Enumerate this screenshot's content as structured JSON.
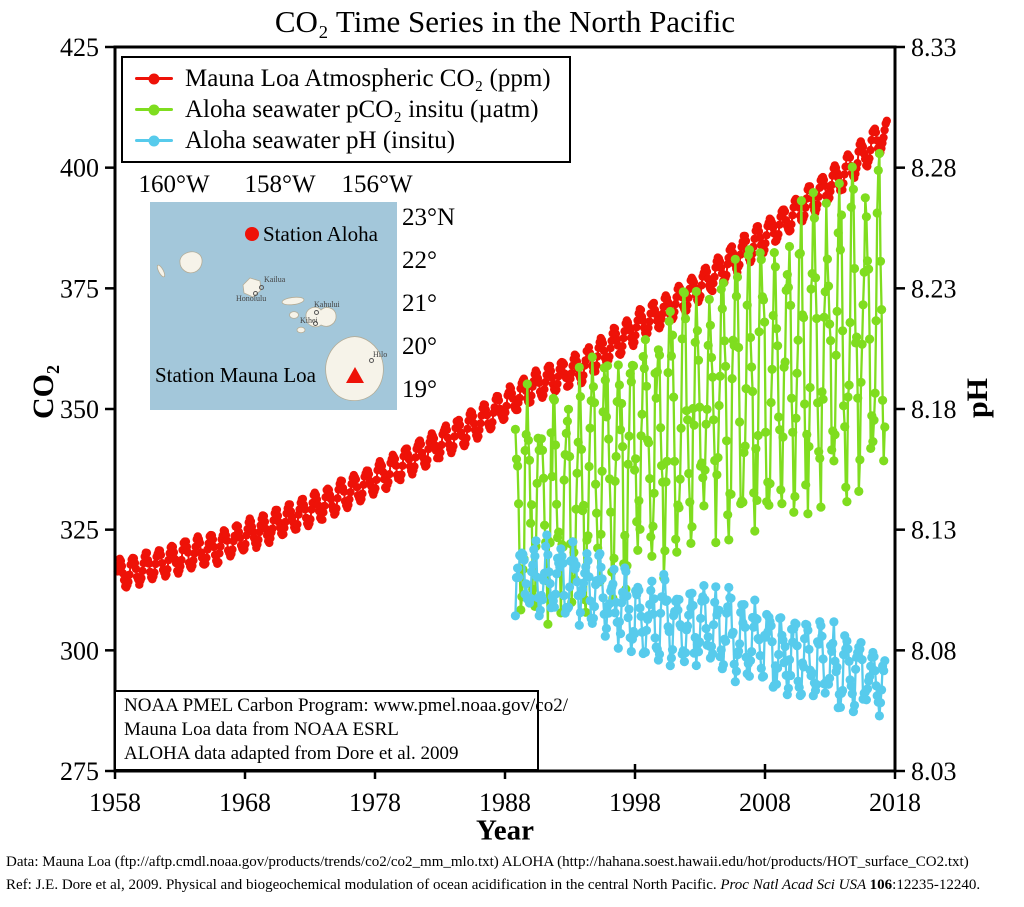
{
  "chart_data": {
    "type": "line",
    "title": "CO₂ Time Series in the North Pacific",
    "xlabel": "Year",
    "ylabel_left": "CO₂",
    "ylabel_right": "pH",
    "x_range": [
      1958,
      2018
    ],
    "y_left_range": [
      275,
      425
    ],
    "y_right_range": [
      8.03,
      8.33
    ],
    "x_ticks": [
      1958,
      1968,
      1978,
      1988,
      1998,
      2008,
      2018
    ],
    "y_left_ticks": [
      425,
      400,
      375,
      350,
      325,
      300,
      275
    ],
    "y_right_ticks": [
      8.33,
      8.28,
      8.23,
      8.18,
      8.13,
      8.08,
      8.03
    ],
    "grid": false,
    "legend_position": "top-left",
    "noise_seed": 7,
    "series": [
      {
        "name": "Mauna Loa Atmospheric CO₂ (ppm)",
        "color": "#ee1208",
        "axis": "left",
        "start": 1958.2,
        "end": 2017.4,
        "seasonal_amplitude": 3.0,
        "amplitude_growth": 0.0,
        "seasonal_phase": 0.38,
        "noise": 0.4,
        "anchors": [
          [
            1958,
            315.3
          ],
          [
            1962,
            318.5
          ],
          [
            1966,
            321.4
          ],
          [
            1970,
            325.7
          ],
          [
            1974,
            330.1
          ],
          [
            1978,
            335.4
          ],
          [
            1982,
            341.4
          ],
          [
            1986,
            347.2
          ],
          [
            1990,
            354.4
          ],
          [
            1994,
            358.8
          ],
          [
            1998,
            366.7
          ],
          [
            2002,
            373.2
          ],
          [
            2006,
            381.9
          ],
          [
            2010,
            389.9
          ],
          [
            2014,
            398.6
          ],
          [
            2017,
            406.5
          ]
        ]
      },
      {
        "name": "Aloha seawater pCO₂ insitu (µatm)",
        "color": "#7fdd1f",
        "axis": "left",
        "start": 1988.8,
        "end": 2017.2,
        "seasonal_amplitude": 18,
        "amplitude_growth": 0.35,
        "seasonal_phase": 0.75,
        "noise": 9,
        "anchors": [
          [
            1989,
            330
          ],
          [
            1992,
            331
          ],
          [
            1995,
            335
          ],
          [
            1998,
            342
          ],
          [
            2001,
            345
          ],
          [
            2004,
            351
          ],
          [
            2007,
            356
          ],
          [
            2010,
            359
          ],
          [
            2013,
            364
          ],
          [
            2016,
            367
          ],
          [
            2017,
            368
          ]
        ]
      },
      {
        "name": "Aloha seawater pH (insitu)",
        "color": "#57cbec",
        "axis": "right",
        "start": 1988.8,
        "end": 2017.2,
        "seasonal_amplitude": 0.013,
        "amplitude_growth": 0.0,
        "seasonal_phase": 0.25,
        "noise": 0.007,
        "anchors": [
          [
            1989,
            8.112
          ],
          [
            1992,
            8.108
          ],
          [
            1995,
            8.104
          ],
          [
            1998,
            8.094
          ],
          [
            2001,
            8.091
          ],
          [
            2004,
            8.088
          ],
          [
            2007,
            8.084
          ],
          [
            2010,
            8.078
          ],
          [
            2013,
            8.073
          ],
          [
            2016,
            8.068
          ],
          [
            2017,
            8.067
          ]
        ]
      }
    ]
  },
  "inset_map": {
    "lon_labels": [
      "160°W",
      "158°W",
      "156°W"
    ],
    "lat_labels": [
      "23°N",
      "22°",
      "21°",
      "20°",
      "19°"
    ],
    "station_aloha_label": "Station Aloha",
    "station_mauna_loa_label": "Station Mauna Loa",
    "city_labels": [
      "Kailua",
      "Honolulu",
      "Kahului",
      "Kihei",
      "Hilo"
    ],
    "ocean_color": "#a3c7da",
    "marker_color": "#ee1208"
  },
  "annotation": {
    "lines": [
      "NOAA PMEL Carbon Program: www.pmel.noaa.gov/co2/",
      "Mauna Loa data from NOAA ESRL",
      "ALOHA data adapted from Dore et al. 2009"
    ]
  },
  "footer": {
    "line1": "Data: Mauna Loa (ftp://aftp.cmdl.noaa.gov/products/trends/co2/co2_mm_mlo.txt)  ALOHA (http://hahana.soest.hawaii.edu/hot/products/HOT_surface_CO2.txt)",
    "ref_prefix": "Ref: J.E. Dore et al, 2009. Physical and biogeochemical modulation of ocean acidification in the central North Pacific. ",
    "ref_italic": "Proc Natl Acad Sci USA ",
    "ref_bold": "106",
    "ref_suffix": ":12235-12240."
  }
}
